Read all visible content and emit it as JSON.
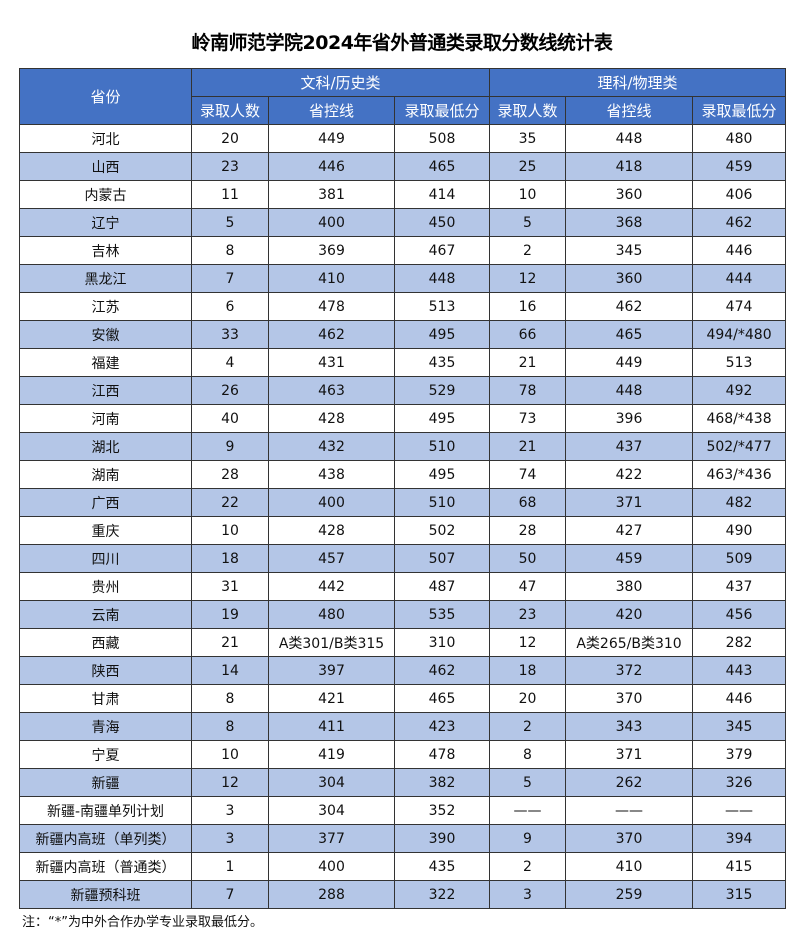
{
  "title": "岭南师范学院2024年省外普通类录取分数线统计表",
  "header": {
    "province": "省份",
    "group_liberal": "文科/历史类",
    "group_science": "理科/物理类",
    "sub_columns": [
      "录取人数",
      "省控线",
      "录取最低分",
      "录取人数",
      "省控线",
      "录取最低分"
    ]
  },
  "colors": {
    "header_bg": "#4472c4",
    "alt_row_bg": "#b4c6e7"
  },
  "rows": [
    [
      "河北",
      "20",
      "449",
      "508",
      "35",
      "448",
      "480"
    ],
    [
      "山西",
      "23",
      "446",
      "465",
      "25",
      "418",
      "459"
    ],
    [
      "内蒙古",
      "11",
      "381",
      "414",
      "10",
      "360",
      "406"
    ],
    [
      "辽宁",
      "5",
      "400",
      "450",
      "5",
      "368",
      "462"
    ],
    [
      "吉林",
      "8",
      "369",
      "467",
      "2",
      "345",
      "446"
    ],
    [
      "黑龙江",
      "7",
      "410",
      "448",
      "12",
      "360",
      "444"
    ],
    [
      "江苏",
      "6",
      "478",
      "513",
      "16",
      "462",
      "474"
    ],
    [
      "安徽",
      "33",
      "462",
      "495",
      "66",
      "465",
      "494/*480"
    ],
    [
      "福建",
      "4",
      "431",
      "435",
      "21",
      "449",
      "513"
    ],
    [
      "江西",
      "26",
      "463",
      "529",
      "78",
      "448",
      "492"
    ],
    [
      "河南",
      "40",
      "428",
      "495",
      "73",
      "396",
      "468/*438"
    ],
    [
      "湖北",
      "9",
      "432",
      "510",
      "21",
      "437",
      "502/*477"
    ],
    [
      "湖南",
      "28",
      "438",
      "495",
      "74",
      "422",
      "463/*436"
    ],
    [
      "广西",
      "22",
      "400",
      "510",
      "68",
      "371",
      "482"
    ],
    [
      "重庆",
      "10",
      "428",
      "502",
      "28",
      "427",
      "490"
    ],
    [
      "四川",
      "18",
      "457",
      "507",
      "50",
      "459",
      "509"
    ],
    [
      "贵州",
      "31",
      "442",
      "487",
      "47",
      "380",
      "437"
    ],
    [
      "云南",
      "19",
      "480",
      "535",
      "23",
      "420",
      "456"
    ],
    [
      "西藏",
      "21",
      "A类301/B类315",
      "310",
      "12",
      "A类265/B类310",
      "282"
    ],
    [
      "陕西",
      "14",
      "397",
      "462",
      "18",
      "372",
      "443"
    ],
    [
      "甘肃",
      "8",
      "421",
      "465",
      "20",
      "370",
      "446"
    ],
    [
      "青海",
      "8",
      "411",
      "423",
      "2",
      "343",
      "345"
    ],
    [
      "宁夏",
      "10",
      "419",
      "478",
      "8",
      "371",
      "379"
    ],
    [
      "新疆",
      "12",
      "304",
      "382",
      "5",
      "262",
      "326"
    ],
    [
      "新疆-南疆单列计划",
      "3",
      "304",
      "352",
      "——",
      "——",
      "——"
    ],
    [
      "新疆内高班（单列类）",
      "3",
      "377",
      "390",
      "9",
      "370",
      "394"
    ],
    [
      "新疆内高班（普通类）",
      "1",
      "400",
      "435",
      "2",
      "410",
      "415"
    ],
    [
      "新疆预科班",
      "7",
      "288",
      "322",
      "3",
      "259",
      "315"
    ]
  ],
  "note": "注：“*”为中外合作办学专业录取最低分。"
}
